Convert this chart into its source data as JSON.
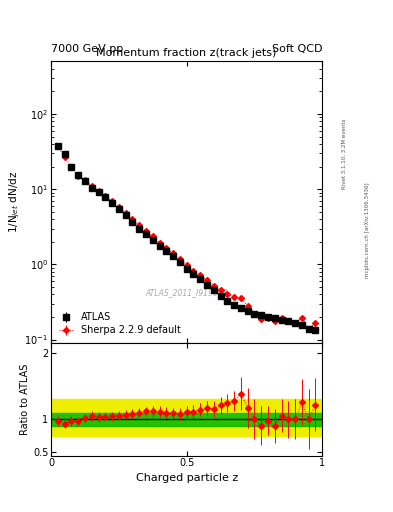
{
  "title": "Momentum fraction z(track jets)",
  "top_left_label": "7000 GeV pp",
  "top_right_label": "Soft QCD",
  "ylabel_main": "1/N$_{jet}$ dN/dz",
  "ylabel_ratio": "Ratio to ATLAS",
  "xlabel": "Charged particle z",
  "watermark": "ATLAS_2011_I919017",
  "right_label": "Rivet 3.1.10, 3.2M events",
  "right_label2": "mcplots.cern.ch [arXiv:1306.3436]",
  "atlas_x": [
    0.025,
    0.05,
    0.075,
    0.1,
    0.125,
    0.15,
    0.175,
    0.2,
    0.225,
    0.25,
    0.275,
    0.3,
    0.325,
    0.35,
    0.375,
    0.4,
    0.425,
    0.45,
    0.475,
    0.5,
    0.525,
    0.55,
    0.575,
    0.6,
    0.625,
    0.65,
    0.675,
    0.7,
    0.725,
    0.75,
    0.775,
    0.8,
    0.825,
    0.85,
    0.875,
    0.9,
    0.925,
    0.95,
    0.975
  ],
  "atlas_y": [
    38.0,
    29.0,
    20.0,
    15.5,
    13.0,
    10.5,
    9.2,
    7.8,
    6.6,
    5.5,
    4.5,
    3.7,
    3.0,
    2.5,
    2.1,
    1.75,
    1.5,
    1.28,
    1.08,
    0.88,
    0.74,
    0.63,
    0.53,
    0.45,
    0.38,
    0.33,
    0.29,
    0.26,
    0.24,
    0.22,
    0.21,
    0.2,
    0.195,
    0.185,
    0.175,
    0.165,
    0.155,
    0.14,
    0.135
  ],
  "atlas_yerr": [
    2.0,
    1.5,
    1.0,
    0.8,
    0.65,
    0.53,
    0.46,
    0.39,
    0.33,
    0.28,
    0.23,
    0.19,
    0.15,
    0.125,
    0.11,
    0.09,
    0.075,
    0.064,
    0.054,
    0.044,
    0.037,
    0.032,
    0.027,
    0.023,
    0.019,
    0.017,
    0.015,
    0.013,
    0.012,
    0.011,
    0.011,
    0.01,
    0.01,
    0.009,
    0.009,
    0.008,
    0.008,
    0.007,
    0.007
  ],
  "sherpa_x": [
    0.025,
    0.05,
    0.075,
    0.1,
    0.125,
    0.15,
    0.175,
    0.2,
    0.225,
    0.25,
    0.275,
    0.3,
    0.325,
    0.35,
    0.375,
    0.4,
    0.425,
    0.45,
    0.475,
    0.5,
    0.525,
    0.55,
    0.575,
    0.6,
    0.625,
    0.65,
    0.675,
    0.7,
    0.725,
    0.75,
    0.775,
    0.8,
    0.825,
    0.85,
    0.875,
    0.9,
    0.925,
    0.95,
    0.975
  ],
  "sherpa_y": [
    37.0,
    27.0,
    19.5,
    15.0,
    13.2,
    11.0,
    9.5,
    8.1,
    6.9,
    5.8,
    4.8,
    4.0,
    3.3,
    2.8,
    2.35,
    1.95,
    1.65,
    1.4,
    1.17,
    0.97,
    0.82,
    0.72,
    0.62,
    0.52,
    0.46,
    0.41,
    0.37,
    0.36,
    0.28,
    0.22,
    0.19,
    0.195,
    0.175,
    0.195,
    0.175,
    0.165,
    0.195,
    0.14,
    0.165
  ],
  "sherpa_yerr": [
    2.0,
    1.5,
    1.0,
    0.8,
    0.65,
    0.55,
    0.48,
    0.41,
    0.35,
    0.29,
    0.24,
    0.2,
    0.17,
    0.14,
    0.12,
    0.1,
    0.08,
    0.07,
    0.06,
    0.05,
    0.04,
    0.036,
    0.031,
    0.026,
    0.023,
    0.021,
    0.019,
    0.018,
    0.014,
    0.011,
    0.01,
    0.01,
    0.009,
    0.01,
    0.009,
    0.008,
    0.01,
    0.007,
    0.008
  ],
  "ratio_y": [
    0.974,
    0.931,
    0.975,
    0.968,
    1.015,
    1.048,
    1.033,
    1.038,
    1.045,
    1.055,
    1.067,
    1.081,
    1.1,
    1.12,
    1.119,
    1.114,
    1.1,
    1.094,
    1.083,
    1.102,
    1.108,
    1.143,
    1.17,
    1.156,
    1.211,
    1.242,
    1.276,
    1.385,
    1.167,
    1.0,
    0.905,
    0.975,
    0.897,
    1.054,
    1.0,
    1.0,
    1.258,
    1.0,
    1.222
  ],
  "ratio_yerr": [
    0.07,
    0.07,
    0.07,
    0.07,
    0.07,
    0.07,
    0.07,
    0.07,
    0.07,
    0.07,
    0.07,
    0.07,
    0.07,
    0.07,
    0.08,
    0.08,
    0.08,
    0.08,
    0.09,
    0.1,
    0.1,
    0.1,
    0.11,
    0.12,
    0.13,
    0.14,
    0.15,
    0.25,
    0.3,
    0.3,
    0.3,
    0.22,
    0.25,
    0.25,
    0.28,
    0.3,
    0.35,
    0.45,
    0.4
  ],
  "ylim_main": [
    0.09,
    500
  ],
  "ylim_ratio": [
    0.45,
    2.15
  ],
  "xlim": [
    0.0,
    1.0
  ],
  "main_bg": "#ffffff",
  "green_color": "#00bb00",
  "yellow_color": "#eeee00",
  "atlas_color": "#000000",
  "sherpa_color": "#ff0000",
  "green_lo": 0.9,
  "green_hi": 1.1,
  "yellow_lo": 0.75,
  "yellow_hi": 1.3
}
